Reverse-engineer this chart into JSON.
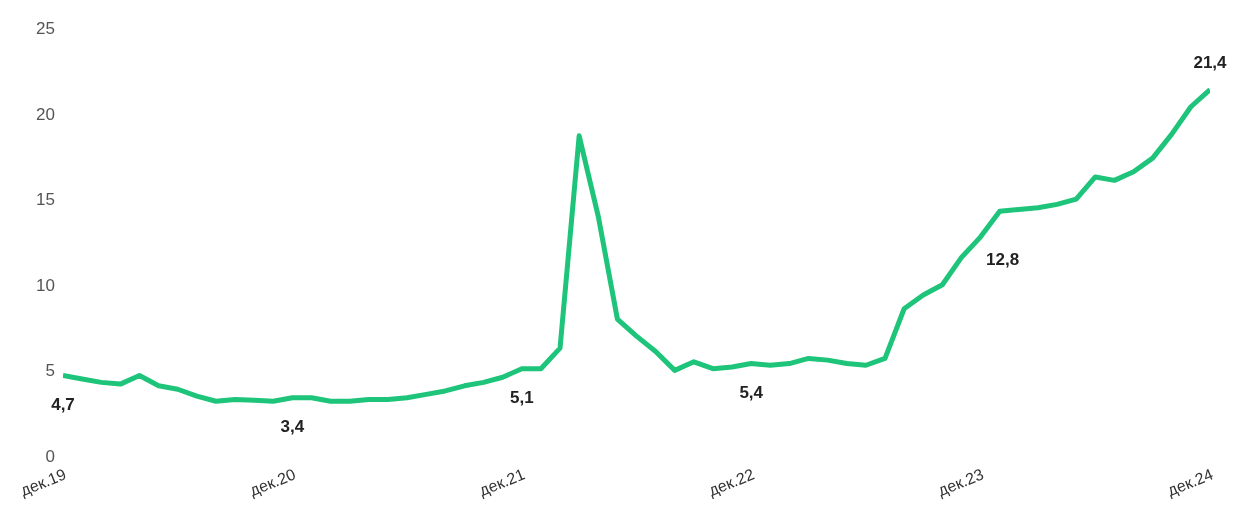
{
  "chart_data": {
    "type": "line",
    "categories": [
      "дек.19",
      null,
      null,
      null,
      null,
      null,
      null,
      null,
      null,
      null,
      null,
      null,
      "дек.20",
      null,
      null,
      null,
      null,
      null,
      null,
      null,
      null,
      null,
      null,
      null,
      "дек.21",
      null,
      null,
      null,
      null,
      null,
      null,
      null,
      null,
      null,
      null,
      null,
      "дек.22",
      null,
      null,
      null,
      null,
      null,
      null,
      null,
      null,
      null,
      null,
      null,
      "дек.23",
      null,
      null,
      null,
      null,
      null,
      null,
      null,
      null,
      null,
      null,
      null,
      "дек.24"
    ],
    "series": [
      {
        "color": "#1dc47a",
        "values": [
          4.7,
          4.5,
          4.3,
          4.2,
          4.7,
          4.1,
          3.9,
          3.5,
          3.2,
          3.3,
          3.25,
          3.2,
          3.4,
          3.4,
          3.2,
          3.2,
          3.3,
          3.3,
          3.4,
          3.6,
          3.8,
          4.1,
          4.3,
          4.6,
          5.1,
          5.1,
          6.3,
          18.7,
          14,
          8,
          7,
          6.1,
          5.0,
          5.5,
          5.1,
          5.2,
          5.4,
          5.3,
          5.4,
          5.7,
          5.6,
          5.4,
          5.3,
          5.7,
          8.6,
          9.4,
          10.0,
          11.6,
          12.8,
          14.3,
          14.4,
          14.5,
          14.7,
          15.0,
          16.3,
          16.1,
          16.6,
          17.4,
          18.8,
          20.4,
          21.4
        ],
        "value_labels": [
          "4,7",
          null,
          null,
          null,
          null,
          null,
          null,
          null,
          null,
          null,
          null,
          null,
          "3,4",
          null,
          null,
          null,
          null,
          null,
          null,
          null,
          null,
          null,
          null,
          null,
          "5,1",
          null,
          null,
          null,
          null,
          null,
          null,
          null,
          null,
          null,
          null,
          null,
          "5,4",
          null,
          null,
          null,
          null,
          null,
          null,
          null,
          null,
          null,
          null,
          null,
          "12,8",
          null,
          null,
          null,
          null,
          null,
          null,
          null,
          null,
          null,
          null,
          null,
          "21,4"
        ]
      }
    ],
    "ylim": [
      0,
      25
    ],
    "yticks": [
      0,
      5,
      10,
      15,
      20,
      25
    ],
    "grid": false,
    "legend": false,
    "marker": "none",
    "line_style": "solid"
  }
}
